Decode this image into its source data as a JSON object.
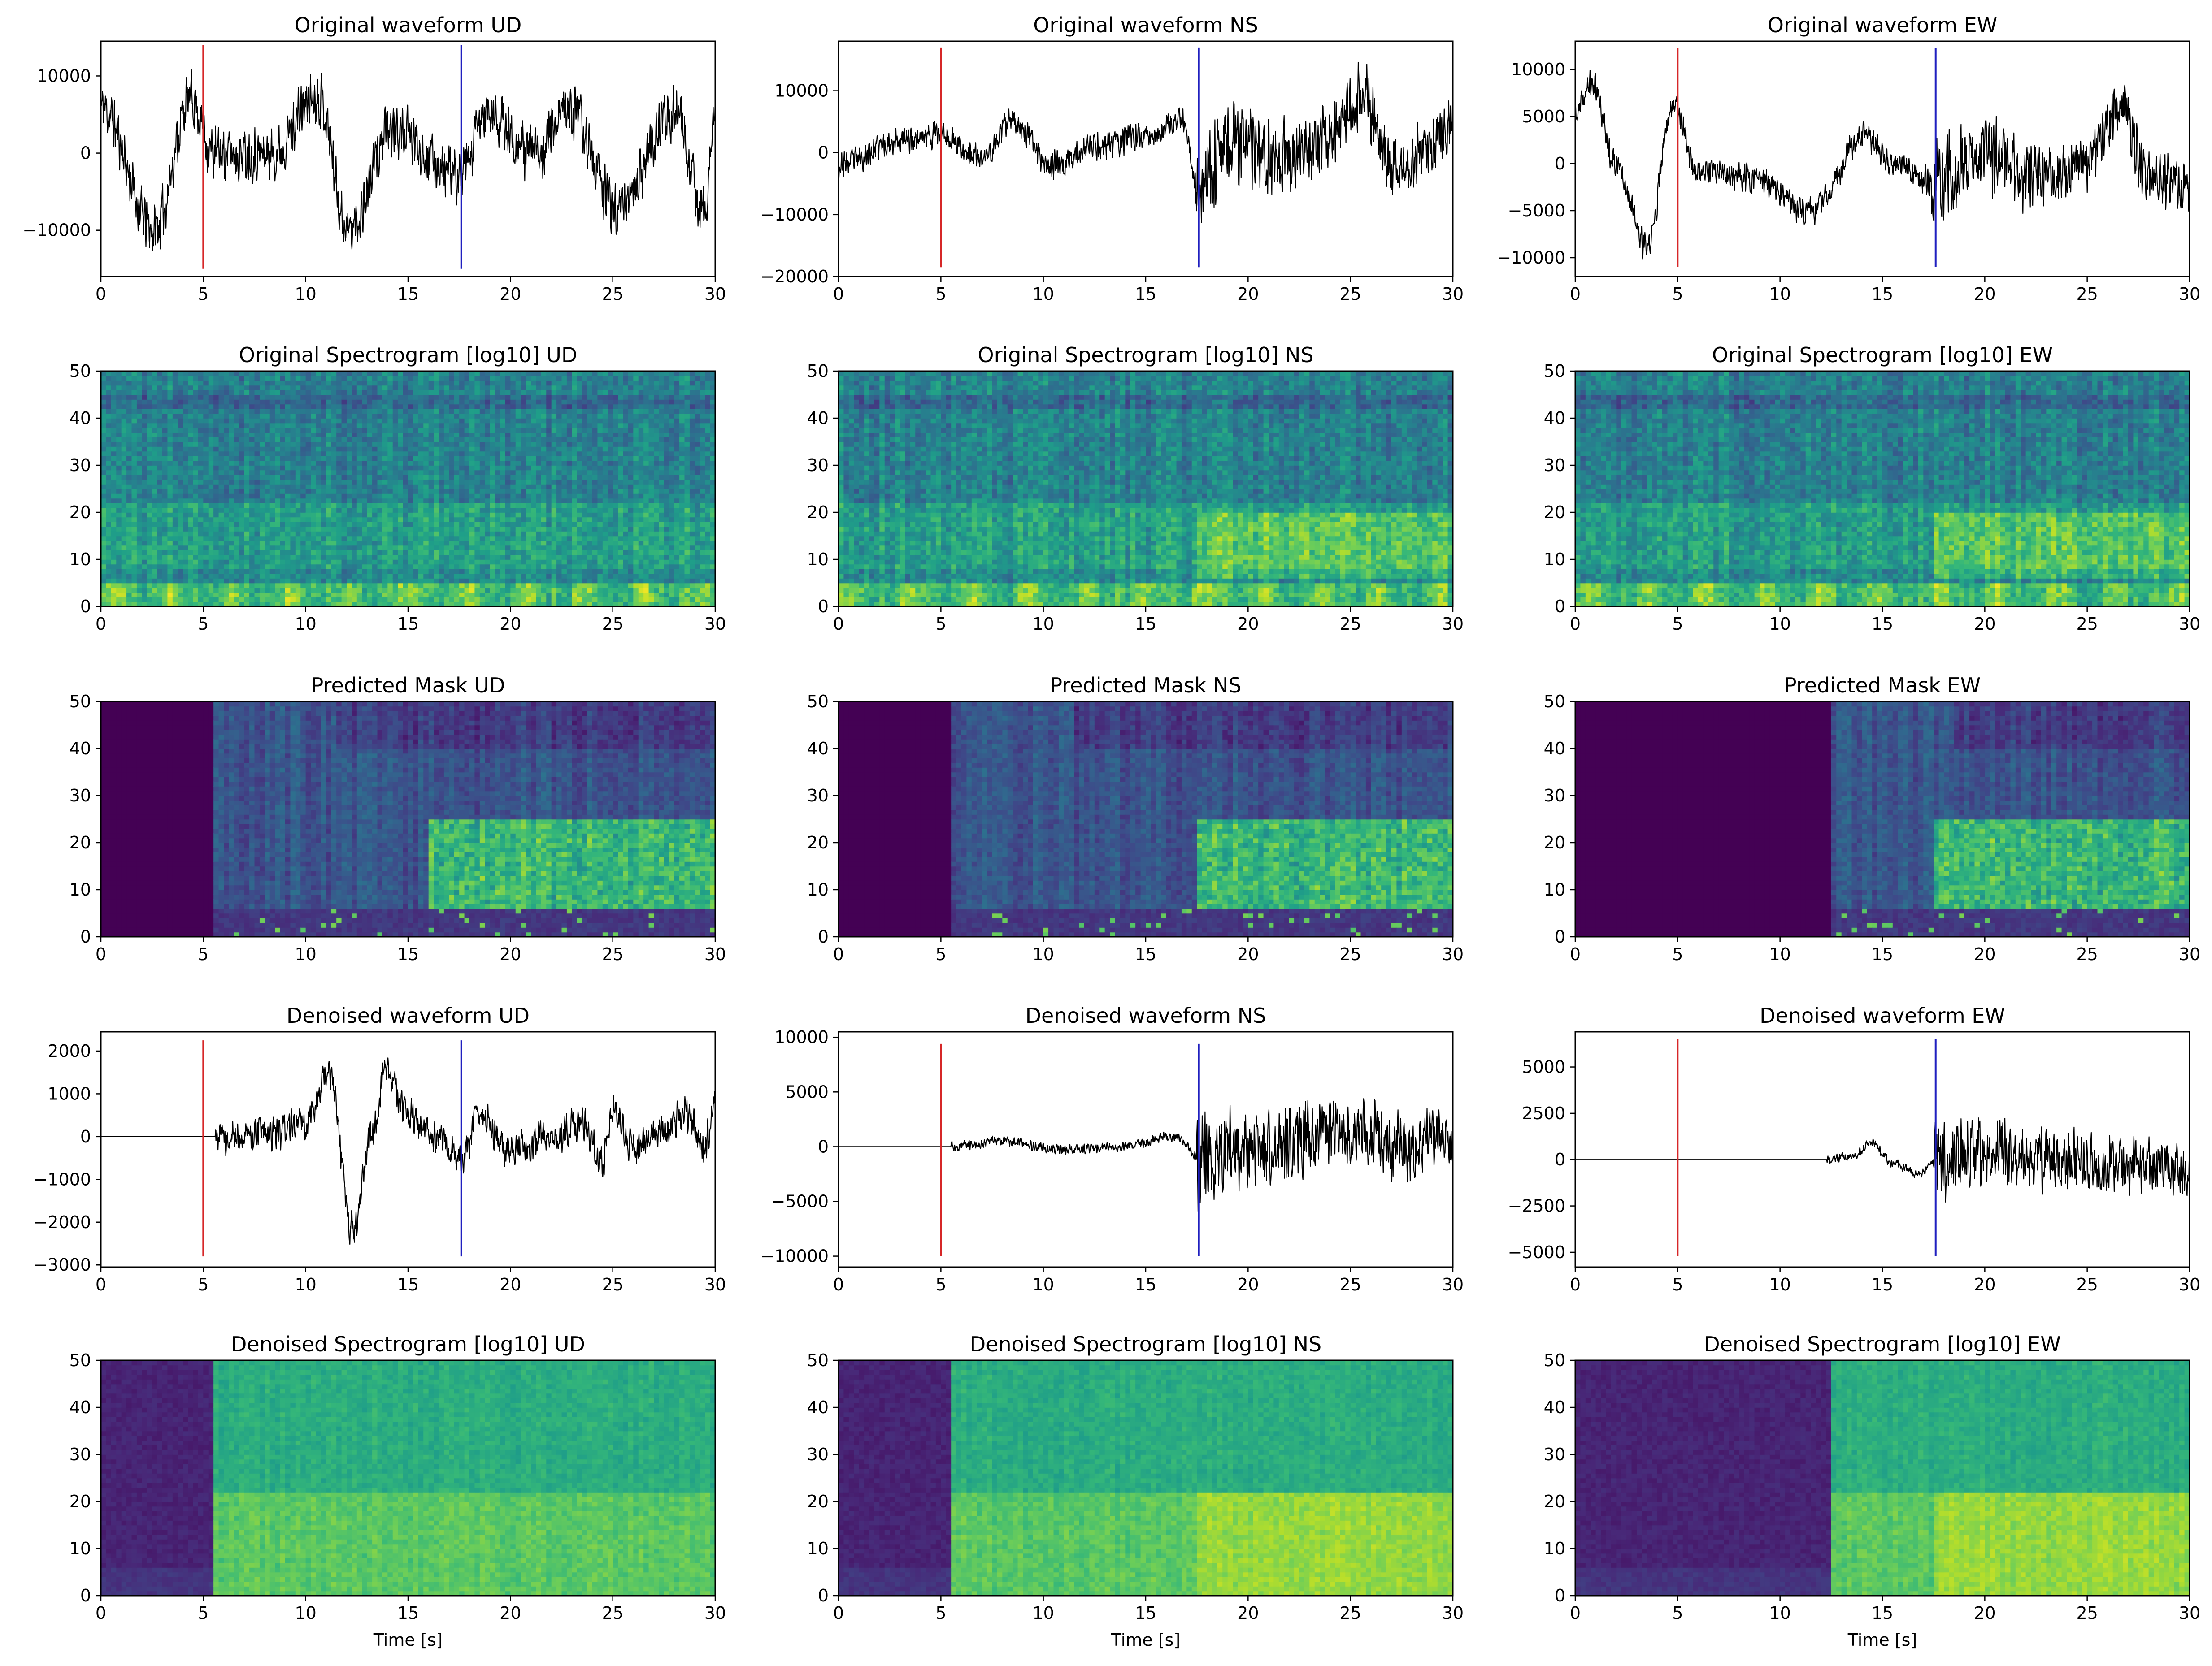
{
  "chart_data": [
    {
      "id": "owf-ud",
      "type": "line",
      "kind": "waveform",
      "title": "Original waveform UD",
      "xlabel": "",
      "ylabel": "",
      "xlim": [
        0,
        30
      ],
      "ylim": [
        -16000,
        14500
      ],
      "xticks": [
        0,
        5,
        10,
        15,
        20,
        25,
        30
      ],
      "yticks": [
        -10000,
        0,
        10000
      ],
      "p_pick": 5.0,
      "s_pick": 17.6,
      "pick_range": [
        -15000,
        14000
      ],
      "onset": 0,
      "envelope": [
        [
          0,
          6000
        ],
        [
          2.6,
          -10000
        ],
        [
          4.4,
          7000
        ],
        [
          5.5,
          0
        ],
        [
          8.3,
          0
        ],
        [
          10.6,
          7500
        ],
        [
          12.1,
          -10000
        ],
        [
          14.2,
          3000
        ],
        [
          17.6,
          -3000
        ],
        [
          18.8,
          5000
        ],
        [
          21.2,
          0
        ],
        [
          22.8,
          6000
        ],
        [
          25.2,
          -7000
        ],
        [
          28,
          5000
        ],
        [
          29.5,
          -8000
        ],
        [
          30,
          6000
        ]
      ],
      "noise_amp": 4200,
      "seed": 11
    },
    {
      "id": "owf-ns",
      "type": "line",
      "kind": "waveform",
      "title": "Original waveform NS",
      "xlabel": "",
      "ylabel": "",
      "xlim": [
        0,
        30
      ],
      "ylim": [
        -20000,
        18000
      ],
      "xticks": [
        0,
        5,
        10,
        15,
        20,
        25,
        30
      ],
      "yticks": [
        -20000,
        -10000,
        0,
        10000
      ],
      "p_pick": 5.0,
      "s_pick": 17.6,
      "pick_range": [
        -18500,
        17000
      ],
      "onset": 0,
      "envelope": [
        [
          0,
          -2000
        ],
        [
          3,
          2000
        ],
        [
          5,
          3000
        ],
        [
          7,
          -1000
        ],
        [
          8.5,
          5000
        ],
        [
          10.5,
          -2000
        ],
        [
          12.5,
          1000
        ],
        [
          15.5,
          3000
        ],
        [
          16.8,
          5000
        ],
        [
          17.6,
          -6000
        ],
        [
          19,
          2000
        ],
        [
          21,
          -1000
        ],
        [
          23,
          0
        ],
        [
          25.6,
          9000
        ],
        [
          27,
          -2000
        ],
        [
          29,
          1000
        ],
        [
          30,
          5000
        ]
      ],
      "noise_amp": 2600,
      "loud_from": 17.4,
      "loud_amp": 8500,
      "seed": 23
    },
    {
      "id": "owf-ew",
      "type": "line",
      "kind": "waveform",
      "title": "Original waveform EW",
      "xlabel": "",
      "ylabel": "",
      "xlim": [
        0,
        30
      ],
      "ylim": [
        -12000,
        13000
      ],
      "xticks": [
        0,
        5,
        10,
        15,
        20,
        25,
        30
      ],
      "yticks": [
        -10000,
        -5000,
        0,
        5000,
        10000
      ],
      "p_pick": 5.0,
      "s_pick": 17.6,
      "pick_range": [
        -11000,
        12300
      ],
      "onset": 0,
      "envelope": [
        [
          0,
          5000
        ],
        [
          0.8,
          8500
        ],
        [
          2,
          0
        ],
        [
          3.5,
          -9000
        ],
        [
          4.8,
          6500
        ],
        [
          6,
          -1000
        ],
        [
          8.5,
          -1500
        ],
        [
          11.5,
          -5000
        ],
        [
          14.2,
          3000
        ],
        [
          15.5,
          0
        ],
        [
          17.6,
          -2000
        ],
        [
          20,
          1000
        ],
        [
          22.5,
          -1500
        ],
        [
          25,
          0
        ],
        [
          26.5,
          6000
        ],
        [
          28,
          -1000
        ],
        [
          30,
          -3000
        ]
      ],
      "noise_amp": 1800,
      "loud_from": 17.4,
      "loud_amp": 5500,
      "seed": 37
    },
    {
      "id": "ospec-ud",
      "type": "heatmap",
      "kind": "spec",
      "variant": "orig",
      "title": "Original Spectrogram [log10] UD",
      "xlabel": "",
      "ylabel": "",
      "xlim": [
        0,
        30
      ],
      "ylim": [
        0,
        50
      ],
      "xticks": [
        0,
        5,
        10,
        15,
        20,
        25,
        30
      ],
      "yticks": [
        0,
        10,
        20,
        30,
        40,
        50
      ],
      "colormap": "viridis",
      "onset": 0,
      "boost_from": 0,
      "seed": 41
    },
    {
      "id": "ospec-ns",
      "type": "heatmap",
      "kind": "spec",
      "variant": "orig",
      "title": "Original Spectrogram [log10] NS",
      "xlabel": "",
      "ylabel": "",
      "xlim": [
        0,
        30
      ],
      "ylim": [
        0,
        50
      ],
      "xticks": [
        0,
        5,
        10,
        15,
        20,
        25,
        30
      ],
      "yticks": [
        0,
        10,
        20,
        30,
        40,
        50
      ],
      "colormap": "viridis",
      "onset": 0,
      "boost_from": 17.5,
      "seed": 43
    },
    {
      "id": "ospec-ew",
      "type": "heatmap",
      "kind": "spec",
      "variant": "orig",
      "title": "Original Spectrogram [log10] EW",
      "xlabel": "",
      "ylabel": "",
      "xlim": [
        0,
        30
      ],
      "ylim": [
        0,
        50
      ],
      "xticks": [
        0,
        5,
        10,
        15,
        20,
        25,
        30
      ],
      "yticks": [
        0,
        10,
        20,
        30,
        40,
        50
      ],
      "colormap": "viridis",
      "onset": 0,
      "boost_from": 17.5,
      "seed": 47
    },
    {
      "id": "mask-ud",
      "type": "heatmap",
      "kind": "spec",
      "variant": "mask",
      "title": "Predicted Mask UD",
      "xlabel": "",
      "ylabel": "",
      "xlim": [
        0,
        30
      ],
      "ylim": [
        0,
        50
      ],
      "xticks": [
        0,
        5,
        10,
        15,
        20,
        25,
        30
      ],
      "yticks": [
        0,
        10,
        20,
        30,
        40,
        50
      ],
      "colormap": "viridis",
      "onset": 5.6,
      "boost_from": 16,
      "seed": 53
    },
    {
      "id": "mask-ns",
      "type": "heatmap",
      "kind": "spec",
      "variant": "mask",
      "title": "Predicted Mask NS",
      "xlabel": "",
      "ylabel": "",
      "xlim": [
        0,
        30
      ],
      "ylim": [
        0,
        50
      ],
      "xticks": [
        0,
        5,
        10,
        15,
        20,
        25,
        30
      ],
      "yticks": [
        0,
        10,
        20,
        30,
        40,
        50
      ],
      "colormap": "viridis",
      "onset": 5.6,
      "boost_from": 17.5,
      "seed": 59
    },
    {
      "id": "mask-ew",
      "type": "heatmap",
      "kind": "spec",
      "variant": "mask",
      "title": "Predicted Mask EW",
      "xlabel": "",
      "ylabel": "",
      "xlim": [
        0,
        30
      ],
      "ylim": [
        0,
        50
      ],
      "xticks": [
        0,
        5,
        10,
        15,
        20,
        25,
        30
      ],
      "yticks": [
        0,
        10,
        20,
        30,
        40,
        50
      ],
      "colormap": "viridis",
      "onset": 12.5,
      "boost_from": 17.5,
      "seed": 61
    },
    {
      "id": "dwf-ud",
      "type": "line",
      "kind": "waveform",
      "title": "Denoised waveform UD",
      "xlabel": "",
      "ylabel": "",
      "xlim": [
        0,
        30
      ],
      "ylim": [
        -3050,
        2450
      ],
      "xticks": [
        0,
        5,
        10,
        15,
        20,
        25,
        30
      ],
      "yticks": [
        -3000,
        -2000,
        -1000,
        0,
        1000,
        2000
      ],
      "p_pick": 5.0,
      "s_pick": 17.6,
      "pick_range": [
        -2800,
        2250
      ],
      "onset": 5.6,
      "envelope": [
        [
          5.6,
          0
        ],
        [
          7,
          0
        ],
        [
          8.5,
          100
        ],
        [
          10,
          300
        ],
        [
          11.1,
          1500
        ],
        [
          12.3,
          -2200
        ],
        [
          13.2,
          0
        ],
        [
          13.9,
          1500
        ],
        [
          15,
          500
        ],
        [
          16.5,
          0
        ],
        [
          17.6,
          -500
        ],
        [
          18.5,
          500
        ],
        [
          20,
          -300
        ],
        [
          22,
          0
        ],
        [
          23.5,
          300
        ],
        [
          24.5,
          -500
        ],
        [
          25,
          700
        ],
        [
          26,
          -300
        ],
        [
          27.5,
          200
        ],
        [
          28.5,
          600
        ],
        [
          29.5,
          -200
        ],
        [
          30,
          700
        ]
      ],
      "noise_amp": 480,
      "seed": 71
    },
    {
      "id": "dwf-ns",
      "type": "line",
      "kind": "waveform",
      "title": "Denoised waveform NS",
      "xlabel": "",
      "ylabel": "",
      "xlim": [
        0,
        30
      ],
      "ylim": [
        -11000,
        10500
      ],
      "xticks": [
        0,
        5,
        10,
        15,
        20,
        25,
        30
      ],
      "yticks": [
        -10000,
        -5000,
        0,
        5000,
        10000
      ],
      "p_pick": 5.0,
      "s_pick": 17.6,
      "pick_range": [
        -10000,
        9400
      ],
      "onset": 5.5,
      "envelope": [
        [
          5.5,
          0
        ],
        [
          8,
          500
        ],
        [
          11,
          -300
        ],
        [
          14,
          0
        ],
        [
          16.5,
          1000
        ],
        [
          17.6,
          -1000
        ],
        [
          20,
          0
        ],
        [
          25.5,
          1500
        ],
        [
          27,
          0
        ],
        [
          30,
          1000
        ]
      ],
      "noise_amp": 550,
      "loud_from": 17.5,
      "loud_amp": 5200,
      "seed": 73
    },
    {
      "id": "dwf-ew",
      "type": "line",
      "kind": "waveform",
      "title": "Denoised waveform EW",
      "xlabel": "",
      "ylabel": "",
      "xlim": [
        0,
        30
      ],
      "ylim": [
        -5800,
        6900
      ],
      "xticks": [
        0,
        5,
        10,
        15,
        20,
        25,
        30
      ],
      "yticks": [
        -5000,
        -2500,
        0,
        2500,
        5000
      ],
      "p_pick": 5.0,
      "s_pick": 17.6,
      "pick_range": [
        -5200,
        6500
      ],
      "onset": 12.3,
      "envelope": [
        [
          12.3,
          0
        ],
        [
          13.5,
          200
        ],
        [
          14.5,
          900
        ],
        [
          15.5,
          -200
        ],
        [
          16.8,
          -800
        ],
        [
          17.6,
          0
        ],
        [
          20,
          300
        ],
        [
          23,
          0
        ],
        [
          26,
          -300
        ],
        [
          30,
          -500
        ]
      ],
      "noise_amp": 280,
      "loud_from": 17.5,
      "loud_amp": 2600,
      "seed": 79
    },
    {
      "id": "dspec-ud",
      "type": "heatmap",
      "kind": "spec",
      "variant": "den",
      "title": "Denoised Spectrogram [log10] UD",
      "xlabel": "Time [s]",
      "ylabel": "",
      "xlim": [
        0,
        30
      ],
      "ylim": [
        0,
        50
      ],
      "xticks": [
        0,
        5,
        10,
        15,
        20,
        25,
        30
      ],
      "yticks": [
        0,
        10,
        20,
        30,
        40,
        50
      ],
      "colormap": "viridis",
      "onset": 5.6,
      "boost_from": 0,
      "seed": 83
    },
    {
      "id": "dspec-ns",
      "type": "heatmap",
      "kind": "spec",
      "variant": "den",
      "title": "Denoised Spectrogram [log10] NS",
      "xlabel": "Time [s]",
      "ylabel": "",
      "xlim": [
        0,
        30
      ],
      "ylim": [
        0,
        50
      ],
      "xticks": [
        0,
        5,
        10,
        15,
        20,
        25,
        30
      ],
      "yticks": [
        0,
        10,
        20,
        30,
        40,
        50
      ],
      "colormap": "viridis",
      "onset": 5.5,
      "boost_from": 17.5,
      "seed": 89
    },
    {
      "id": "dspec-ew",
      "type": "heatmap",
      "kind": "spec",
      "variant": "den",
      "title": "Denoised Spectrogram [log10] EW",
      "xlabel": "Time [s]",
      "ylabel": "",
      "xlim": [
        0,
        30
      ],
      "ylim": [
        0,
        50
      ],
      "xticks": [
        0,
        5,
        10,
        15,
        20,
        25,
        30
      ],
      "yticks": [
        0,
        10,
        20,
        30,
        40,
        50
      ],
      "colormap": "viridis",
      "onset": 12.4,
      "boost_from": 17.5,
      "seed": 97
    }
  ],
  "colors": {
    "waveform": "#000000",
    "p_pick": "#d62728",
    "s_pick": "#1f1fbf",
    "axes": "#000000",
    "background": "#ffffff"
  }
}
